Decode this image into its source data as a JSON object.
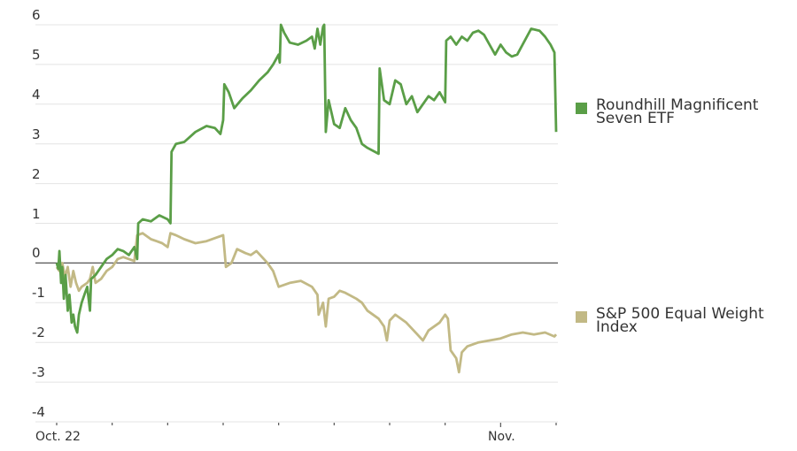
{
  "chart_data": {
    "type": "line",
    "title": "",
    "xlabel": "",
    "ylabel": "",
    "ylim": [
      -4,
      6
    ],
    "yticks": [
      6,
      5,
      4,
      3,
      2,
      1,
      0,
      -1,
      -2,
      -3,
      -4
    ],
    "x_tick_labels": [
      {
        "label": "Oct. 22",
        "index": 0
      },
      {
        "label": "Nov.",
        "index": 8
      }
    ],
    "x_tick_count": 10,
    "grid": true,
    "legend_position": "right",
    "series": [
      {
        "name": "Roundhill Magnificent Seven ETF",
        "color": "#5a9e47",
        "points": [
          [
            0,
            0
          ],
          [
            0.03,
            -0.15
          ],
          [
            0.05,
            0.3
          ],
          [
            0.08,
            -0.5
          ],
          [
            0.1,
            -0.1
          ],
          [
            0.13,
            -0.9
          ],
          [
            0.16,
            -0.3
          ],
          [
            0.2,
            -1.2
          ],
          [
            0.23,
            -0.8
          ],
          [
            0.27,
            -1.5
          ],
          [
            0.3,
            -1.3
          ],
          [
            0.33,
            -1.6
          ],
          [
            0.37,
            -1.75
          ],
          [
            0.4,
            -1.3
          ],
          [
            0.45,
            -1.0
          ],
          [
            0.5,
            -0.8
          ],
          [
            0.55,
            -0.6
          ],
          [
            0.6,
            -1.2
          ],
          [
            0.62,
            -0.4
          ],
          [
            0.7,
            -0.3
          ],
          [
            0.8,
            -0.1
          ],
          [
            0.9,
            0.1
          ],
          [
            1.0,
            0.2
          ],
          [
            1.1,
            0.35
          ],
          [
            1.2,
            0.3
          ],
          [
            1.3,
            0.2
          ],
          [
            1.4,
            0.4
          ],
          [
            1.45,
            0.1
          ],
          [
            1.47,
            1.0
          ],
          [
            1.55,
            1.1
          ],
          [
            1.7,
            1.05
          ],
          [
            1.85,
            1.2
          ],
          [
            2.0,
            1.1
          ],
          [
            2.05,
            1.0
          ],
          [
            2.07,
            2.8
          ],
          [
            2.15,
            3.0
          ],
          [
            2.3,
            3.05
          ],
          [
            2.5,
            3.3
          ],
          [
            2.7,
            3.45
          ],
          [
            2.85,
            3.4
          ],
          [
            2.95,
            3.25
          ],
          [
            3.0,
            3.6
          ],
          [
            3.02,
            4.5
          ],
          [
            3.1,
            4.3
          ],
          [
            3.2,
            3.9
          ],
          [
            3.35,
            4.15
          ],
          [
            3.5,
            4.35
          ],
          [
            3.65,
            4.6
          ],
          [
            3.8,
            4.8
          ],
          [
            3.9,
            5.0
          ],
          [
            4.0,
            5.25
          ],
          [
            4.02,
            5.05
          ],
          [
            4.04,
            6.0
          ],
          [
            4.1,
            5.8
          ],
          [
            4.2,
            5.55
          ],
          [
            4.35,
            5.5
          ],
          [
            4.5,
            5.6
          ],
          [
            4.6,
            5.7
          ],
          [
            4.65,
            5.4
          ],
          [
            4.7,
            5.9
          ],
          [
            4.75,
            5.5
          ],
          [
            4.8,
            5.95
          ],
          [
            4.82,
            6.0
          ],
          [
            4.85,
            3.3
          ],
          [
            4.9,
            4.1
          ],
          [
            5.0,
            3.5
          ],
          [
            5.1,
            3.4
          ],
          [
            5.2,
            3.9
          ],
          [
            5.3,
            3.6
          ],
          [
            5.4,
            3.4
          ],
          [
            5.5,
            3.0
          ],
          [
            5.6,
            2.9
          ],
          [
            5.8,
            2.75
          ],
          [
            5.82,
            4.9
          ],
          [
            5.9,
            4.1
          ],
          [
            6.0,
            4.0
          ],
          [
            6.1,
            4.6
          ],
          [
            6.2,
            4.5
          ],
          [
            6.3,
            4.0
          ],
          [
            6.4,
            4.2
          ],
          [
            6.5,
            3.8
          ],
          [
            6.6,
            4.0
          ],
          [
            6.7,
            4.2
          ],
          [
            6.8,
            4.1
          ],
          [
            6.9,
            4.3
          ],
          [
            7.0,
            4.05
          ],
          [
            7.02,
            5.6
          ],
          [
            7.1,
            5.7
          ],
          [
            7.2,
            5.5
          ],
          [
            7.3,
            5.7
          ],
          [
            7.4,
            5.6
          ],
          [
            7.5,
            5.8
          ],
          [
            7.6,
            5.85
          ],
          [
            7.7,
            5.75
          ],
          [
            7.8,
            5.5
          ],
          [
            7.9,
            5.25
          ],
          [
            8.0,
            5.5
          ],
          [
            8.1,
            5.3
          ],
          [
            8.2,
            5.2
          ],
          [
            8.3,
            5.25
          ],
          [
            8.55,
            5.9
          ],
          [
            8.7,
            5.85
          ],
          [
            8.8,
            5.7
          ],
          [
            8.9,
            5.5
          ],
          [
            8.97,
            5.3
          ],
          [
            9.0,
            3.3
          ]
        ]
      },
      {
        "name": "S&P 500 Equal Weight Index",
        "color": "#c2b985",
        "points": [
          [
            0,
            -0.1
          ],
          [
            0.05,
            -0.2
          ],
          [
            0.1,
            0.0
          ],
          [
            0.15,
            -0.35
          ],
          [
            0.2,
            -0.1
          ],
          [
            0.25,
            -0.6
          ],
          [
            0.3,
            -0.2
          ],
          [
            0.35,
            -0.5
          ],
          [
            0.4,
            -0.7
          ],
          [
            0.45,
            -0.6
          ],
          [
            0.55,
            -0.5
          ],
          [
            0.6,
            -0.4
          ],
          [
            0.65,
            -0.1
          ],
          [
            0.7,
            -0.5
          ],
          [
            0.8,
            -0.4
          ],
          [
            0.9,
            -0.2
          ],
          [
            1.0,
            -0.1
          ],
          [
            1.1,
            0.1
          ],
          [
            1.2,
            0.15
          ],
          [
            1.3,
            0.1
          ],
          [
            1.4,
            0.05
          ],
          [
            1.45,
            0.7
          ],
          [
            1.55,
            0.75
          ],
          [
            1.7,
            0.6
          ],
          [
            1.8,
            0.55
          ],
          [
            1.9,
            0.5
          ],
          [
            2.0,
            0.4
          ],
          [
            2.05,
            0.75
          ],
          [
            2.15,
            0.7
          ],
          [
            2.3,
            0.6
          ],
          [
            2.5,
            0.5
          ],
          [
            2.7,
            0.55
          ],
          [
            2.9,
            0.65
          ],
          [
            3.0,
            0.7
          ],
          [
            3.05,
            -0.1
          ],
          [
            3.15,
            0.0
          ],
          [
            3.25,
            0.35
          ],
          [
            3.4,
            0.25
          ],
          [
            3.5,
            0.2
          ],
          [
            3.6,
            0.3
          ],
          [
            3.7,
            0.15
          ],
          [
            3.8,
            0.0
          ],
          [
            3.9,
            -0.2
          ],
          [
            4.0,
            -0.6
          ],
          [
            4.2,
            -0.5
          ],
          [
            4.4,
            -0.45
          ],
          [
            4.6,
            -0.6
          ],
          [
            4.7,
            -0.8
          ],
          [
            4.72,
            -1.3
          ],
          [
            4.8,
            -1.0
          ],
          [
            4.85,
            -1.6
          ],
          [
            4.9,
            -0.9
          ],
          [
            5.0,
            -0.85
          ],
          [
            5.1,
            -0.7
          ],
          [
            5.2,
            -0.75
          ],
          [
            5.4,
            -0.9
          ],
          [
            5.5,
            -1.0
          ],
          [
            5.6,
            -1.2
          ],
          [
            5.8,
            -1.4
          ],
          [
            5.9,
            -1.6
          ],
          [
            5.95,
            -1.95
          ],
          [
            6.0,
            -1.45
          ],
          [
            6.1,
            -1.3
          ],
          [
            6.3,
            -1.5
          ],
          [
            6.5,
            -1.8
          ],
          [
            6.6,
            -1.95
          ],
          [
            6.7,
            -1.7
          ],
          [
            6.9,
            -1.5
          ],
          [
            7.0,
            -1.3
          ],
          [
            7.05,
            -1.4
          ],
          [
            7.1,
            -2.2
          ],
          [
            7.2,
            -2.4
          ],
          [
            7.25,
            -2.75
          ],
          [
            7.3,
            -2.25
          ],
          [
            7.4,
            -2.1
          ],
          [
            7.6,
            -2.0
          ],
          [
            7.8,
            -1.95
          ],
          [
            8.0,
            -1.9
          ],
          [
            8.2,
            -1.8
          ],
          [
            8.4,
            -1.75
          ],
          [
            8.6,
            -1.8
          ],
          [
            8.8,
            -1.75
          ],
          [
            8.97,
            -1.85
          ],
          [
            9.0,
            -1.8
          ]
        ]
      }
    ]
  },
  "legend": {
    "items": [
      {
        "label": "Roundhill Magnificent Seven ETF",
        "color": "#5a9e47"
      },
      {
        "label": "S&P 500 Equal Weight Index",
        "color": "#c2b985"
      }
    ]
  },
  "axis": {
    "y_labels": [
      "6",
      "5",
      "4",
      "3",
      "2",
      "1",
      "0",
      "-1",
      "-2",
      "-3",
      "-4"
    ],
    "x_labels": [
      "Oct. 22",
      "Nov."
    ]
  }
}
